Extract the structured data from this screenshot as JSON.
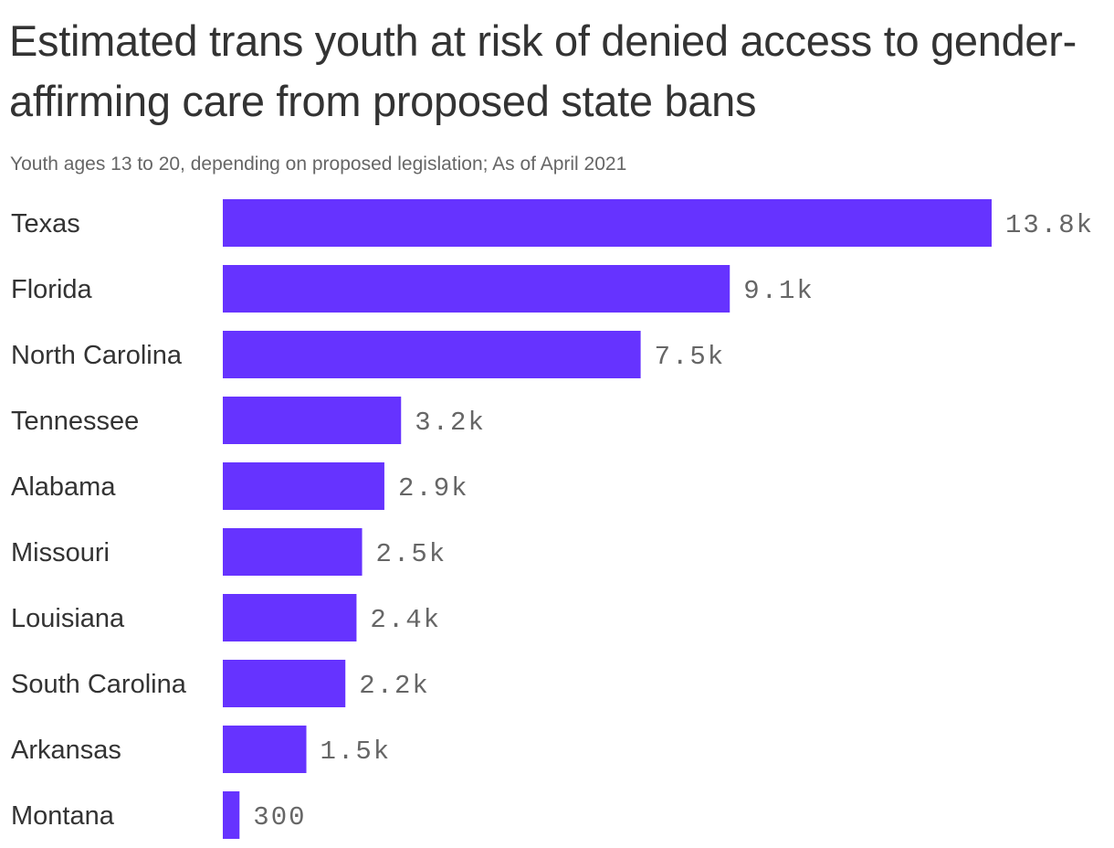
{
  "title": "Estimated trans youth at risk of denied access to gender-affirming care from proposed state bans",
  "subtitle": "Youth ages 13 to 20, depending on proposed legislation; As of April 2021",
  "colors": {
    "bar": "#6633ff",
    "text": "#333333",
    "muted": "#666666"
  },
  "chart_data": {
    "type": "bar",
    "orientation": "horizontal",
    "title": "Estimated trans youth at risk of denied access to gender-affirming care from proposed state bans",
    "subtitle": "Youth ages 13 to 20, depending on proposed legislation; As of April 2021",
    "categories": [
      "Texas",
      "Florida",
      "North Carolina",
      "Tennessee",
      "Alabama",
      "Missouri",
      "Louisiana",
      "South Carolina",
      "Arkansas",
      "Montana"
    ],
    "values": [
      13800,
      9100,
      7500,
      3200,
      2900,
      2500,
      2400,
      2200,
      1500,
      300
    ],
    "value_labels": [
      "13.8k",
      "9.1k",
      "7.5k",
      "3.2k",
      "2.9k",
      "2.5k",
      "2.4k",
      "2.2k",
      "1.5k",
      "300"
    ],
    "xlim": [
      0,
      13800
    ],
    "grid": false,
    "legend": "none"
  }
}
